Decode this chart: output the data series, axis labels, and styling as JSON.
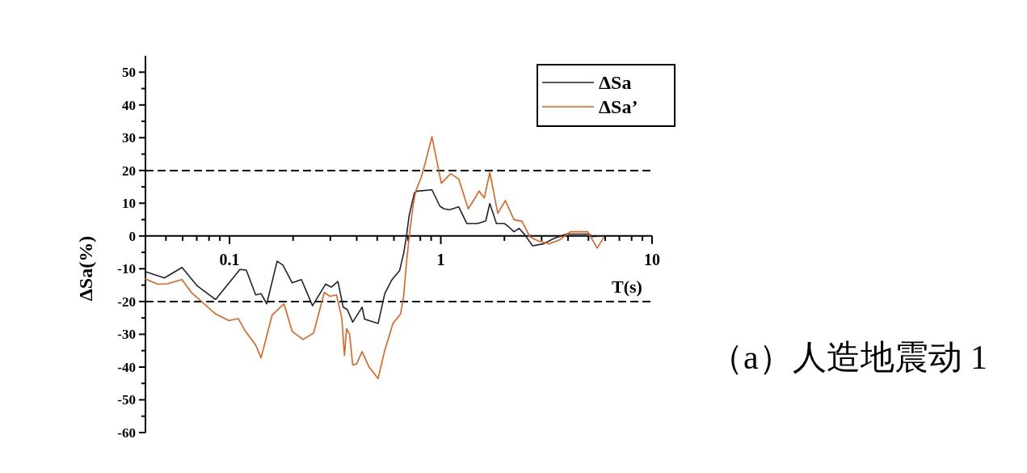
{
  "chart_data": {
    "type": "line",
    "xlabel": "T(s)",
    "ylabel": "ΔSa(%)",
    "log": "x",
    "xlim": [
      0.04,
      10
    ],
    "ylim": [
      -60,
      55
    ],
    "xticks": [
      {
        "value": 0.05,
        "label": null
      },
      {
        "value": 0.06,
        "label": null
      },
      {
        "value": 0.07,
        "label": null
      },
      {
        "value": 0.08,
        "label": null
      },
      {
        "value": 0.09,
        "label": null
      },
      0.1,
      {
        "value": 0.2,
        "label": null
      },
      {
        "value": 0.3,
        "label": null
      },
      {
        "value": 0.4,
        "label": null
      },
      {
        "value": 0.5,
        "label": null
      },
      {
        "value": 0.6,
        "label": null
      },
      {
        "value": 0.7,
        "label": null
      },
      {
        "value": 0.8,
        "label": null
      },
      {
        "value": 0.9,
        "label": null
      },
      1,
      {
        "value": 2,
        "label": null
      },
      {
        "value": 3,
        "label": null
      },
      {
        "value": 4,
        "label": null
      },
      {
        "value": 5,
        "label": null
      },
      {
        "value": 6,
        "label": null
      },
      {
        "value": 7,
        "label": null
      },
      {
        "value": 8,
        "label": null
      },
      {
        "value": 9,
        "label": null
      },
      10
    ],
    "yticks": [
      -60,
      {
        "value": -55,
        "label": null
      },
      -50,
      {
        "value": -45,
        "label": null
      },
      -40,
      {
        "value": -35,
        "label": null
      },
      -30,
      {
        "value": -25,
        "label": null
      },
      -20,
      {
        "value": -15,
        "label": null
      },
      -10,
      {
        "value": -5,
        "label": null
      },
      0,
      {
        "value": 5,
        "label": null
      },
      10,
      {
        "value": 15,
        "label": null
      },
      20,
      {
        "value": 25,
        "label": null
      },
      30,
      {
        "value": 35,
        "label": null
      },
      40,
      {
        "value": 45,
        "label": null
      },
      50
    ],
    "legend": "top right",
    "series": [
      {
        "name": "ΔSa",
        "color": "#202030",
        "x": [
          0.04,
          0.0492,
          0.0596,
          0.07,
          0.0859,
          0.112,
          0.12,
          0.133,
          0.141,
          0.15,
          0.168,
          0.179,
          0.198,
          0.219,
          0.247,
          0.285,
          0.303,
          0.326,
          0.345,
          0.361,
          0.383,
          0.424,
          0.436,
          0.505,
          0.543,
          0.585,
          0.638,
          0.667,
          0.687,
          0.708,
          0.75,
          0.773,
          0.908,
          0.99,
          1.036,
          1.099,
          1.216,
          1.328,
          1.494,
          1.632,
          1.706,
          1.834,
          2.0,
          2.12,
          2.22,
          2.35,
          2.49,
          2.72,
          3.06,
          3.44,
          3.93,
          5.04,
          5.19,
          5.92
        ],
        "values": [
          -10.9,
          -12.8,
          -9.6,
          -15.1,
          -19.4,
          -10.2,
          -10.4,
          -18.0,
          -17.6,
          -20.7,
          -7.7,
          -8.9,
          -14.3,
          -13.3,
          -21.3,
          -14.7,
          -15.6,
          -13.9,
          -21.7,
          -22.5,
          -26.3,
          -21.7,
          -25.4,
          -26.7,
          -17.6,
          -13.5,
          -10.6,
          -5.3,
          -0.3,
          6.2,
          13.2,
          13.7,
          14.1,
          9.1,
          8.3,
          8.0,
          8.9,
          3.8,
          3.8,
          4.6,
          9.9,
          3.8,
          3.8,
          2.5,
          1.3,
          2.3,
          0.5,
          -3.0,
          -2.4,
          -0.7,
          0.6,
          0.6,
          -0.2,
          0.1
        ]
      },
      {
        "name": "ΔSa’",
        "color": "#e0601c",
        "x": [
          0.04,
          0.0457,
          0.0507,
          0.0596,
          0.0659,
          0.0859,
          0.0993,
          0.11,
          0.119,
          0.133,
          0.141,
          0.159,
          0.181,
          0.198,
          0.223,
          0.25,
          0.281,
          0.298,
          0.321,
          0.34,
          0.35,
          0.358,
          0.37,
          0.383,
          0.4,
          0.424,
          0.456,
          0.505,
          0.543,
          0.594,
          0.645,
          0.667,
          0.687,
          0.708,
          0.74,
          0.761,
          0.807,
          0.844,
          0.908,
          1.006,
          1.114,
          1.216,
          1.348,
          1.45,
          1.515,
          1.607,
          1.706,
          1.862,
          2.02,
          2.22,
          2.42,
          2.645,
          2.89,
          3.25,
          3.65,
          3.93,
          4.11,
          4.96,
          5.5,
          5.92
        ],
        "values": [
          -13.1,
          -14.7,
          -14.6,
          -13.3,
          -17.2,
          -23.8,
          -25.8,
          -25.2,
          -29.1,
          -33.3,
          -37.2,
          -24.2,
          -20.7,
          -29.1,
          -31.6,
          -29.6,
          -17.2,
          -18.4,
          -18.0,
          -25.0,
          -36.5,
          -28.3,
          -30.0,
          -39.4,
          -39.0,
          -35.3,
          -39.8,
          -43.5,
          -34.9,
          -26.7,
          -23.8,
          -18.4,
          -8.6,
          -0.3,
          9.5,
          13.7,
          17.8,
          22.3,
          30.3,
          16.1,
          19.0,
          17.4,
          8.3,
          11.5,
          13.7,
          11.6,
          19.4,
          6.9,
          10.8,
          5.0,
          4.5,
          -0.3,
          -1.5,
          -2.4,
          -1.2,
          0.4,
          1.3,
          1.3,
          -3.7,
          -0.3
        ]
      }
    ],
    "ref_lines": [
      {
        "axis": "y",
        "value": 20,
        "color": "#000000",
        "line_style": "dashed"
      },
      {
        "axis": "y",
        "value": -20,
        "color": "#000000",
        "line_style": "dashed"
      }
    ],
    "annotations": [
      "（a）人造地震动 1"
    ]
  }
}
